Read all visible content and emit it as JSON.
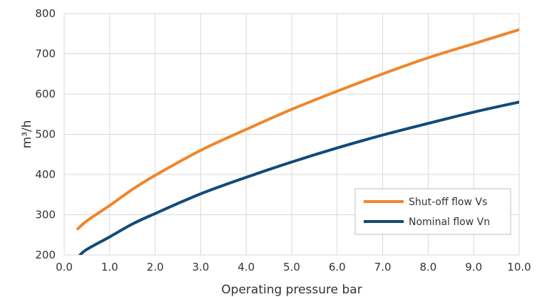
{
  "chart_data": {
    "type": "line",
    "title": "",
    "xlabel": "Operating pressure bar",
    "ylabel": "m³/h",
    "xlim": [
      0,
      10
    ],
    "ylim": [
      200,
      800
    ],
    "x_ticks": [
      "0.0",
      "1.0",
      "2.0",
      "3.0",
      "4.0",
      "5.0",
      "6.0",
      "7.0",
      "8.0",
      "9.0",
      "10.0"
    ],
    "y_ticks": [
      "200",
      "300",
      "400",
      "500",
      "600",
      "700",
      "800"
    ],
    "grid": true,
    "legend_position": "bottom-right",
    "series": [
      {
        "name": "Shut-off flow  Vs",
        "color": "#f0862b",
        "x": [
          0.3,
          0.5,
          1.0,
          1.5,
          2.0,
          3.0,
          4.0,
          5.0,
          6.0,
          7.0,
          8.0,
          9.0,
          10.0
        ],
        "y": [
          265,
          285,
          323,
          363,
          398,
          460,
          512,
          562,
          607,
          650,
          690,
          725,
          760
        ]
      },
      {
        "name": "Nominal flow  Vn",
        "color": "#114a7a",
        "x": [
          0.35,
          0.5,
          1.0,
          1.5,
          2.0,
          3.0,
          4.0,
          5.0,
          6.0,
          7.0,
          8.0,
          9.0,
          10.0
        ],
        "y": [
          200,
          214,
          245,
          277,
          303,
          352,
          393,
          431,
          466,
          498,
          527,
          555,
          580
        ]
      }
    ]
  }
}
